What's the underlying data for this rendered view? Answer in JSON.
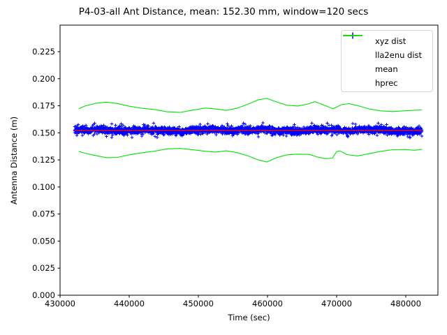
{
  "chart_data": {
    "type": "line+scatter",
    "title": "P4-03-all Ant Distance, mean: 152.30 mm, window=120 secs",
    "xlabel": "Time (sec)",
    "ylabel": "Antenna Distance (m)",
    "xlim": [
      430000,
      484650
    ],
    "ylim": [
      0.0,
      0.2495
    ],
    "grid": false,
    "background": "#ffffff",
    "axis_color": "#000000",
    "xticks": [
      {
        "value": 430000,
        "label": "430000"
      },
      {
        "value": 440000,
        "label": "440000"
      },
      {
        "value": 450000,
        "label": "450000"
      },
      {
        "value": 460000,
        "label": "460000"
      },
      {
        "value": 470000,
        "label": "470000"
      },
      {
        "value": 480000,
        "label": "480000"
      }
    ],
    "yticks": [
      {
        "value": 0.0,
        "label": "0.000"
      },
      {
        "value": 0.025,
        "label": "0.025"
      },
      {
        "value": 0.05,
        "label": "0.050"
      },
      {
        "value": 0.075,
        "label": "0.075"
      },
      {
        "value": 0.1,
        "label": "0.100"
      },
      {
        "value": 0.125,
        "label": "0.125"
      },
      {
        "value": 0.15,
        "label": "0.150"
      },
      {
        "value": 0.175,
        "label": "0.175"
      },
      {
        "value": 0.2,
        "label": "0.200"
      },
      {
        "value": 0.225,
        "label": "0.225"
      }
    ],
    "legend": {
      "position": "upper right",
      "entries": [
        {
          "label": "xyz dist",
          "marker": "plus",
          "color": "#0000ff"
        },
        {
          "label": "lla2enu dist",
          "marker": "line",
          "color": "#ff0000"
        },
        {
          "label": "mean",
          "marker": "line",
          "color": "#00e400"
        },
        {
          "label": "hprec",
          "marker": "line",
          "color": "#00e400"
        }
      ]
    },
    "series": [
      {
        "name": "xyz dist",
        "type": "scatter",
        "marker": "+",
        "color": "#0000ff",
        "band": {
          "t_start": 432100,
          "t_end": 482350,
          "center": 0.1523,
          "sigma": 0.0015,
          "outlier_frac": 0.08,
          "outlier_sigma": 0.0031,
          "clip": 0.0063,
          "count": 3200,
          "seed": 7,
          "wander": [
            {
              "period": 8200,
              "amp": 0.0006,
              "phase": 1.6
            },
            {
              "period": 3400,
              "amp": 0.00045,
              "phase": 0.4
            },
            {
              "period": 17000,
              "amp": 0.0004,
              "phase": 3.2
            }
          ]
        }
      },
      {
        "name": "lla2enu dist",
        "type": "line",
        "color": "#ff0000",
        "width": 1.4,
        "points": [
          [
            432100,
            0.1523
          ],
          [
            482350,
            0.1523
          ]
        ]
      },
      {
        "name": "mean",
        "type": "line",
        "color": "#00e400",
        "width": 1.2,
        "points": [
          [
            432100,
            0.1523
          ],
          [
            482350,
            0.1523
          ]
        ]
      },
      {
        "name": "hprec",
        "type": "line",
        "color": "#00e400",
        "width": 1.1,
        "upper": [
          [
            432700,
            0.1722
          ],
          [
            433600,
            0.1748
          ],
          [
            435100,
            0.1772
          ],
          [
            436700,
            0.1784
          ],
          [
            438300,
            0.1771
          ],
          [
            440000,
            0.1746
          ],
          [
            441800,
            0.1727
          ],
          [
            443600,
            0.1716
          ],
          [
            445400,
            0.1695
          ],
          [
            447400,
            0.1689
          ],
          [
            449300,
            0.1711
          ],
          [
            451000,
            0.1729
          ],
          [
            452500,
            0.1721
          ],
          [
            454000,
            0.1707
          ],
          [
            455600,
            0.1727
          ],
          [
            457200,
            0.1766
          ],
          [
            458700,
            0.1806
          ],
          [
            459900,
            0.1818
          ],
          [
            461300,
            0.1786
          ],
          [
            462800,
            0.1755
          ],
          [
            464400,
            0.1748
          ],
          [
            465800,
            0.1766
          ],
          [
            466900,
            0.1788
          ],
          [
            468300,
            0.1753
          ],
          [
            469500,
            0.1722
          ],
          [
            470700,
            0.176
          ],
          [
            471800,
            0.177
          ],
          [
            473300,
            0.1747
          ],
          [
            474700,
            0.1721
          ],
          [
            476300,
            0.1703
          ],
          [
            478100,
            0.1697
          ],
          [
            479900,
            0.1704
          ],
          [
            481300,
            0.1709
          ],
          [
            482350,
            0.1712
          ]
        ],
        "lower": [
          [
            432700,
            0.1329
          ],
          [
            433600,
            0.1312
          ],
          [
            435100,
            0.1291
          ],
          [
            436700,
            0.1271
          ],
          [
            438300,
            0.1273
          ],
          [
            440000,
            0.1297
          ],
          [
            441800,
            0.1316
          ],
          [
            443600,
            0.133
          ],
          [
            445400,
            0.1351
          ],
          [
            447400,
            0.1356
          ],
          [
            449300,
            0.1343
          ],
          [
            451000,
            0.133
          ],
          [
            452500,
            0.1322
          ],
          [
            454000,
            0.1334
          ],
          [
            455600,
            0.1317
          ],
          [
            457200,
            0.1287
          ],
          [
            458700,
            0.1249
          ],
          [
            459900,
            0.1231
          ],
          [
            461300,
            0.127
          ],
          [
            462800,
            0.1297
          ],
          [
            464400,
            0.1303
          ],
          [
            466000,
            0.1301
          ],
          [
            467200,
            0.1277
          ],
          [
            468400,
            0.1261
          ],
          [
            469400,
            0.1267
          ],
          [
            470000,
            0.1327
          ],
          [
            470500,
            0.1333
          ],
          [
            471500,
            0.1299
          ],
          [
            473000,
            0.1287
          ],
          [
            474600,
            0.1306
          ],
          [
            476300,
            0.1329
          ],
          [
            478100,
            0.1344
          ],
          [
            479900,
            0.1346
          ],
          [
            481300,
            0.1339
          ],
          [
            482350,
            0.1348
          ]
        ]
      }
    ]
  }
}
